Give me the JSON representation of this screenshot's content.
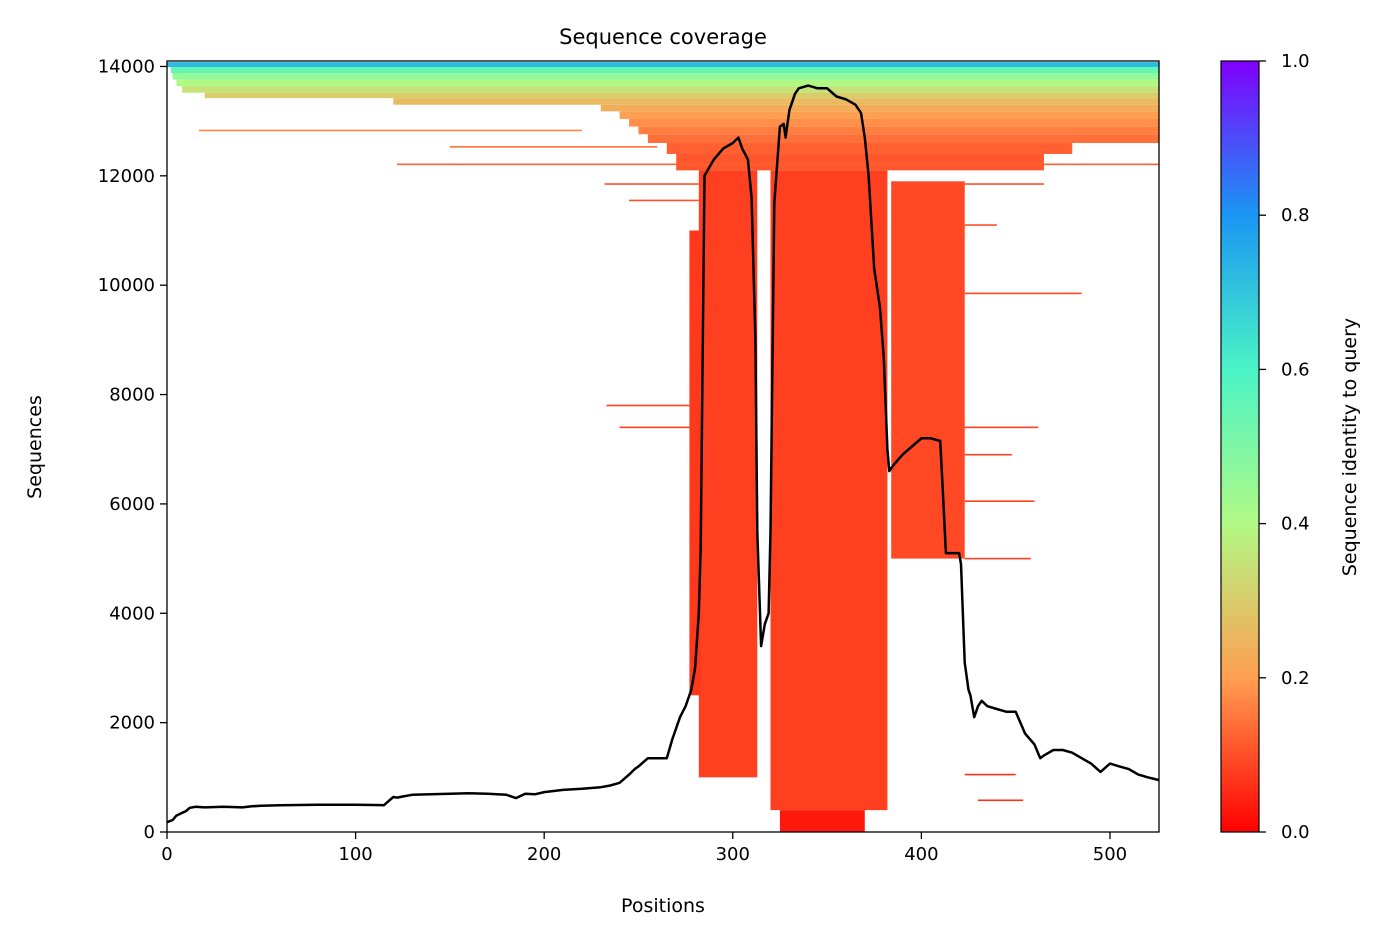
{
  "chart_data": {
    "type": "heatmap",
    "title": "Sequence coverage",
    "xlabel": "Positions",
    "ylabel": "Sequences",
    "xlim": [
      0,
      526
    ],
    "ylim": [
      0,
      14100
    ],
    "xticks": [
      0,
      100,
      200,
      300,
      400,
      500
    ],
    "yticks": [
      0,
      2000,
      4000,
      6000,
      8000,
      10000,
      12000,
      14000
    ],
    "colorbar": {
      "label": "Sequence identity to query",
      "range": [
        0,
        1
      ],
      "ticks": [
        "0.0",
        "0.2",
        "0.4",
        "0.6",
        "0.8",
        "1.0"
      ],
      "colormap": "rainbow"
    },
    "colormap_stops": [
      {
        "value": 0.0,
        "color": "#ff0000"
      },
      {
        "value": 0.2,
        "color": "#ff9f51"
      },
      {
        "value": 0.4,
        "color": "#b1f985"
      },
      {
        "value": 0.6,
        "color": "#4bf4c6"
      },
      {
        "value": 0.8,
        "color": "#1996f3"
      },
      {
        "value": 1.0,
        "color": "#8000ff"
      }
    ],
    "alignment_blocks": [
      {
        "x0": 0,
        "x1": 526,
        "y0": 13990,
        "y1": 14080,
        "identity": 0.72
      },
      {
        "x0": 2,
        "x1": 526,
        "y0": 13880,
        "y1": 13990,
        "identity": 0.55
      },
      {
        "x0": 3,
        "x1": 526,
        "y0": 13760,
        "y1": 13880,
        "identity": 0.46
      },
      {
        "x0": 5,
        "x1": 526,
        "y0": 13640,
        "y1": 13760,
        "identity": 0.4
      },
      {
        "x0": 8,
        "x1": 526,
        "y0": 13520,
        "y1": 13640,
        "identity": 0.35
      },
      {
        "x0": 20,
        "x1": 526,
        "y0": 13420,
        "y1": 13520,
        "identity": 0.3
      },
      {
        "x0": 120,
        "x1": 526,
        "y0": 13300,
        "y1": 13420,
        "identity": 0.26
      },
      {
        "x0": 230,
        "x1": 526,
        "y0": 13180,
        "y1": 13300,
        "identity": 0.23
      },
      {
        "x0": 240,
        "x1": 526,
        "y0": 13040,
        "y1": 13180,
        "identity": 0.2
      },
      {
        "x0": 245,
        "x1": 526,
        "y0": 12900,
        "y1": 13040,
        "identity": 0.18
      },
      {
        "x0": 250,
        "x1": 526,
        "y0": 12760,
        "y1": 12900,
        "identity": 0.16
      },
      {
        "x0": 255,
        "x1": 526,
        "y0": 12600,
        "y1": 12760,
        "identity": 0.14
      },
      {
        "x0": 265,
        "x1": 480,
        "y0": 12400,
        "y1": 12600,
        "identity": 0.12
      },
      {
        "x0": 270,
        "x1": 465,
        "y0": 12100,
        "y1": 12400,
        "identity": 0.11
      },
      {
        "x0": 282,
        "x1": 313,
        "y0": 1000,
        "y1": 12100,
        "identity": 0.08
      },
      {
        "x0": 320,
        "x1": 382,
        "y0": 400,
        "y1": 12100,
        "identity": 0.08
      },
      {
        "x0": 384,
        "x1": 423,
        "y0": 5000,
        "y1": 11900,
        "identity": 0.09
      },
      {
        "x0": 277,
        "x1": 283,
        "y0": 2500,
        "y1": 11000,
        "identity": 0.07
      },
      {
        "x0": 325,
        "x1": 370,
        "y0": 0,
        "y1": 400,
        "identity": 0.03
      }
    ],
    "alignment_lines": [
      {
        "x0": 17,
        "x1": 220,
        "y": 12830,
        "identity": 0.17
      },
      {
        "x0": 122,
        "x1": 526,
        "y": 12210,
        "identity": 0.12
      },
      {
        "x0": 150,
        "x1": 260,
        "y": 12530,
        "identity": 0.14
      },
      {
        "x0": 232,
        "x1": 282,
        "y": 11850,
        "identity": 0.1
      },
      {
        "x0": 245,
        "x1": 282,
        "y": 11550,
        "identity": 0.1
      },
      {
        "x0": 388,
        "x1": 465,
        "y": 11850,
        "identity": 0.1
      },
      {
        "x0": 423,
        "x1": 440,
        "y": 11100,
        "identity": 0.1
      },
      {
        "x0": 423,
        "x1": 485,
        "y": 9850,
        "identity": 0.09
      },
      {
        "x0": 233,
        "x1": 282,
        "y": 7800,
        "identity": 0.08
      },
      {
        "x0": 240,
        "x1": 282,
        "y": 7400,
        "identity": 0.08
      },
      {
        "x0": 423,
        "x1": 462,
        "y": 7400,
        "identity": 0.08
      },
      {
        "x0": 423,
        "x1": 448,
        "y": 6900,
        "identity": 0.08
      },
      {
        "x0": 423,
        "x1": 460,
        "y": 6050,
        "identity": 0.08
      },
      {
        "x0": 423,
        "x1": 458,
        "y": 5000,
        "identity": 0.08
      },
      {
        "x0": 423,
        "x1": 450,
        "y": 1050,
        "identity": 0.06
      },
      {
        "x0": 430,
        "x1": 454,
        "y": 580,
        "identity": 0.06
      }
    ],
    "coverage_line": {
      "x": [
        0,
        3,
        5,
        8,
        10,
        12,
        15,
        20,
        30,
        40,
        45,
        50,
        60,
        80,
        100,
        115,
        120,
        122,
        125,
        130,
        140,
        150,
        160,
        170,
        180,
        185,
        190,
        195,
        200,
        210,
        220,
        230,
        235,
        240,
        245,
        248,
        250,
        255,
        260,
        265,
        268,
        272,
        275,
        278,
        280,
        282,
        283,
        285,
        290,
        295,
        300,
        303,
        305,
        308,
        310,
        312,
        313,
        315,
        317,
        319,
        320,
        322,
        325,
        327,
        328,
        330,
        333,
        335,
        340,
        345,
        350,
        355,
        360,
        365,
        368,
        370,
        372,
        375,
        378,
        380,
        382,
        383,
        385,
        390,
        395,
        400,
        405,
        410,
        411,
        413,
        415,
        418,
        420,
        421,
        423,
        425,
        426,
        428,
        430,
        432,
        435,
        440,
        445,
        450,
        455,
        460,
        463,
        465,
        470,
        475,
        480,
        485,
        490,
        495,
        500,
        505,
        510,
        515,
        520,
        526
      ],
      "y": [
        180,
        220,
        300,
        350,
        380,
        440,
        460,
        450,
        460,
        450,
        470,
        480,
        490,
        500,
        500,
        490,
        640,
        630,
        650,
        680,
        690,
        700,
        710,
        700,
        680,
        620,
        700,
        690,
        730,
        770,
        790,
        820,
        850,
        900,
        1050,
        1150,
        1200,
        1350,
        1350,
        1350,
        1700,
        2100,
        2300,
        2600,
        3000,
        4000,
        5200,
        12000,
        12300,
        12500,
        12600,
        12700,
        12500,
        12300,
        11600,
        9000,
        5500,
        3400,
        3800,
        4000,
        5500,
        11500,
        12900,
        12950,
        12700,
        13200,
        13500,
        13600,
        13650,
        13600,
        13600,
        13450,
        13400,
        13300,
        13150,
        12700,
        12000,
        10300,
        9600,
        8700,
        7000,
        6600,
        6700,
        6900,
        7050,
        7200,
        7200,
        7150,
        6500,
        5100,
        5100,
        5100,
        5100,
        4900,
        3100,
        2600,
        2500,
        2100,
        2300,
        2400,
        2300,
        2250,
        2200,
        2200,
        1800,
        1600,
        1350,
        1400,
        1500,
        1500,
        1450,
        1350,
        1250,
        1100,
        1250,
        1200,
        1150,
        1050,
        1000,
        950
      ]
    }
  }
}
